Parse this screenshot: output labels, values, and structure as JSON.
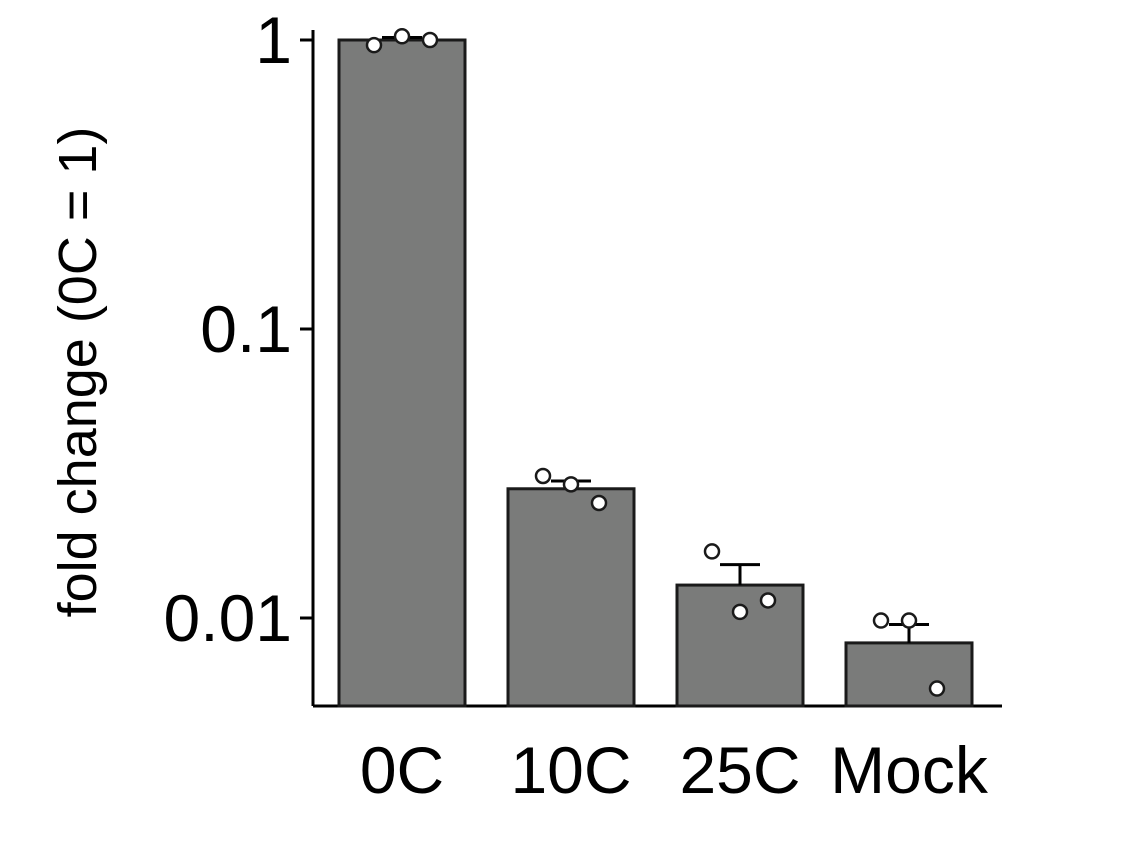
{
  "chart_data": {
    "type": "bar",
    "categories": [
      "0C",
      "10C",
      "25C",
      "Mock"
    ],
    "series": [
      {
        "values": [
          1.0,
          0.028,
          0.013,
          0.0082
        ],
        "errors": [
          0.02,
          0.0018,
          0.0023,
          0.0013
        ],
        "points": [
          [
            0.96,
            1.03,
            1.0
          ],
          [
            0.031,
            0.029,
            0.025
          ],
          [
            0.017,
            0.0105,
            0.0115
          ],
          [
            0.0098,
            0.0098,
            0.0057
          ]
        ]
      }
    ],
    "ylabel": "fold change (0C = 1)",
    "yscale": "log",
    "ylim": [
      0.005,
      1.05
    ],
    "yticks": [
      {
        "value": 1,
        "label": "1"
      },
      {
        "value": 0.1,
        "label": "0.1"
      },
      {
        "value": 0.01,
        "label": "0.01"
      }
    ],
    "bar_color": "#7a7b7a",
    "edge_color": "#1a1a1a",
    "grid": false,
    "legend": "none"
  }
}
